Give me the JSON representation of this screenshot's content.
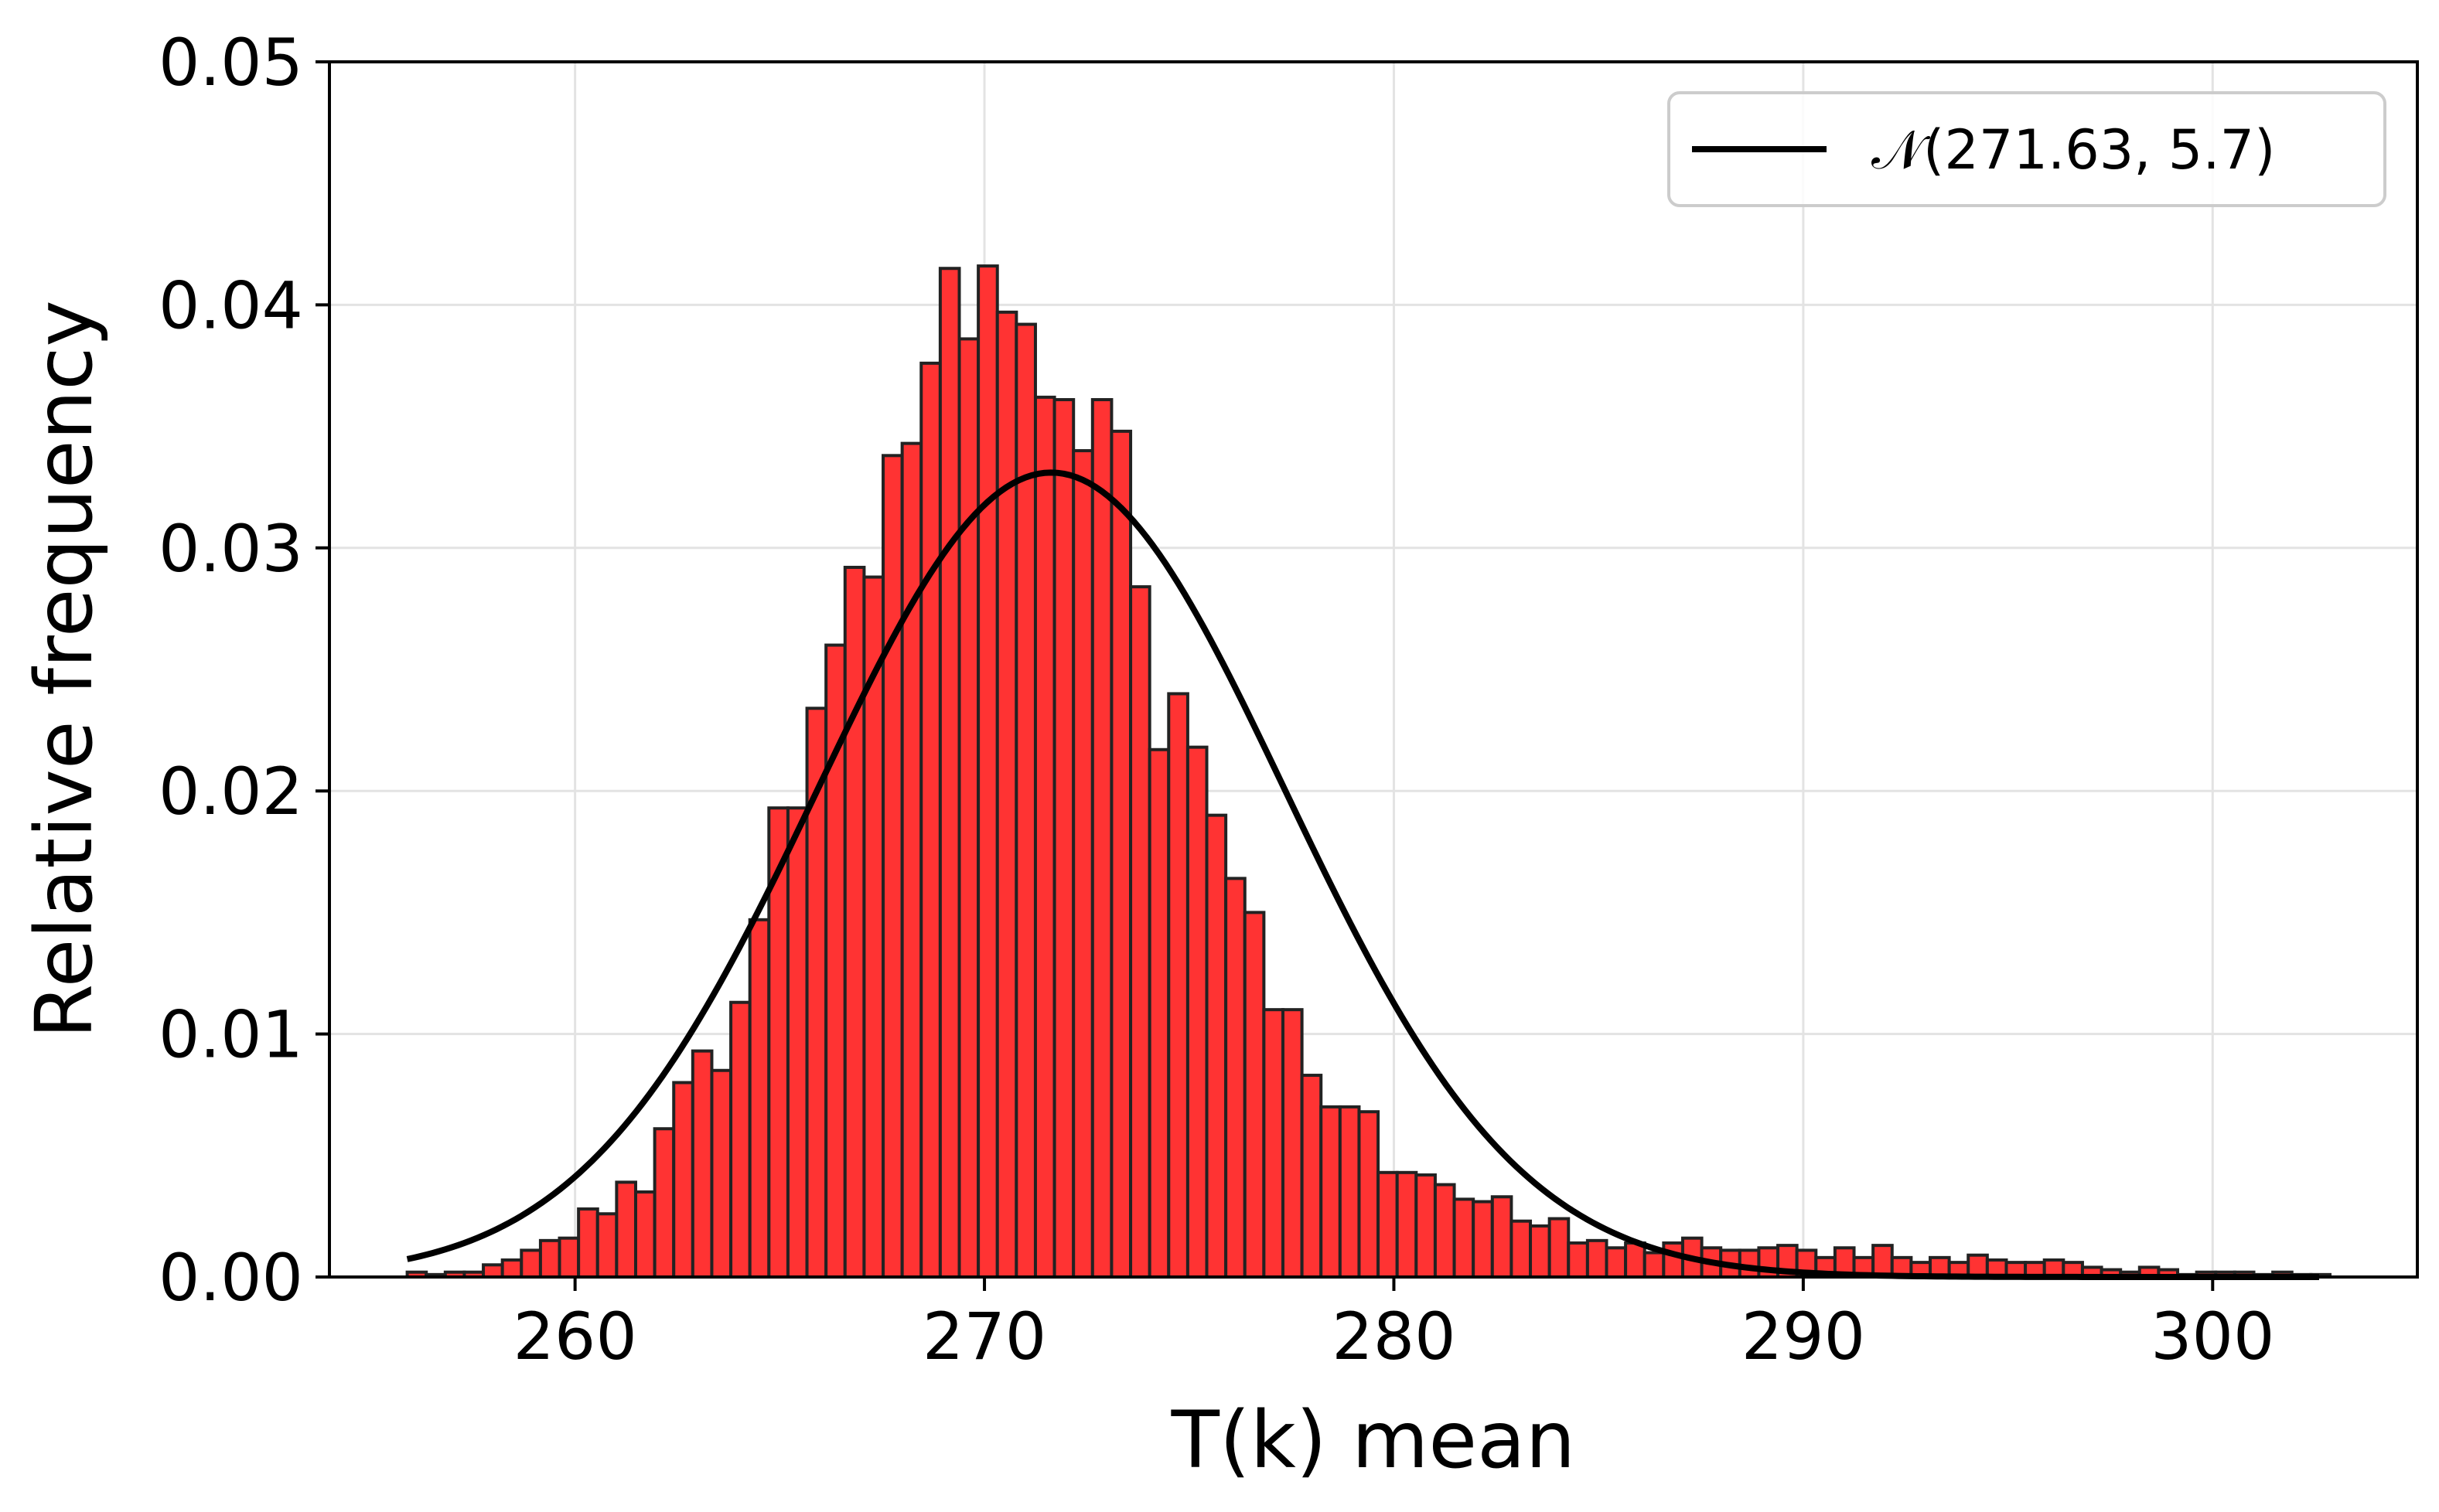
{
  "chart_data": {
    "type": "bar",
    "title": "",
    "xlabel": "T(k) mean",
    "ylabel": "Relative frequency",
    "xlim": [
      254,
      305
    ],
    "ylim": [
      0,
      0.05
    ],
    "x_ticks": [
      260,
      270,
      280,
      290,
      300
    ],
    "x_tick_labels": [
      "260",
      "270",
      "280",
      "290",
      "300"
    ],
    "y_ticks": [
      0,
      0.01,
      0.02,
      0.03,
      0.04,
      0.05
    ],
    "y_tick_labels": [
      "0.00",
      "0.01",
      "0.02",
      "0.03",
      "0.04",
      "0.05"
    ],
    "grid": true,
    "bar_color": "#ff3333",
    "bar_edge_color": "#222222",
    "bin_start": 255.9,
    "bin_width": 0.465,
    "values": [
      0.0002,
      0.0001,
      0.0002,
      0.0002,
      0.0005,
      0.0007,
      0.0011,
      0.0015,
      0.0016,
      0.0028,
      0.0026,
      0.0039,
      0.0035,
      0.0061,
      0.008,
      0.0093,
      0.0085,
      0.0113,
      0.0147,
      0.0193,
      0.0193,
      0.0234,
      0.026,
      0.0292,
      0.0288,
      0.0338,
      0.0343,
      0.0376,
      0.0415,
      0.0386,
      0.0416,
      0.0397,
      0.0392,
      0.0362,
      0.0361,
      0.034,
      0.0361,
      0.0348,
      0.0284,
      0.0217,
      0.024,
      0.0218,
      0.019,
      0.0164,
      0.015,
      0.011,
      0.011,
      0.0083,
      0.007,
      0.007,
      0.0068,
      0.0043,
      0.0043,
      0.0042,
      0.0038,
      0.0032,
      0.0031,
      0.0033,
      0.0023,
      0.0021,
      0.0024,
      0.0014,
      0.0015,
      0.0012,
      0.0014,
      0.001,
      0.0014,
      0.0016,
      0.0012,
      0.0011,
      0.0011,
      0.0012,
      0.0013,
      0.0011,
      0.0008,
      0.0012,
      0.0008,
      0.0013,
      0.0008,
      0.0006,
      0.0008,
      0.0006,
      0.0009,
      0.0007,
      0.0006,
      0.0006,
      0.0007,
      0.0006,
      0.0004,
      0.0003,
      0.0002,
      0.0004,
      0.0003,
      0.0001,
      0.0002,
      0.0002,
      0.0002,
      0.0001,
      0.0002,
      0.0001,
      0.0001
    ],
    "series": [
      {
        "name": "𝒩(271.63, 5.7)",
        "type": "line",
        "color": "#000000",
        "distribution": "normal",
        "mean": 271.63,
        "std": 5.7,
        "x_range": [
          255.9,
          302.6
        ],
        "peak_y": 0.0331
      }
    ],
    "legend": {
      "position": "top-right",
      "entries": [
        "𝒩(271.63, 5.7)"
      ]
    }
  }
}
